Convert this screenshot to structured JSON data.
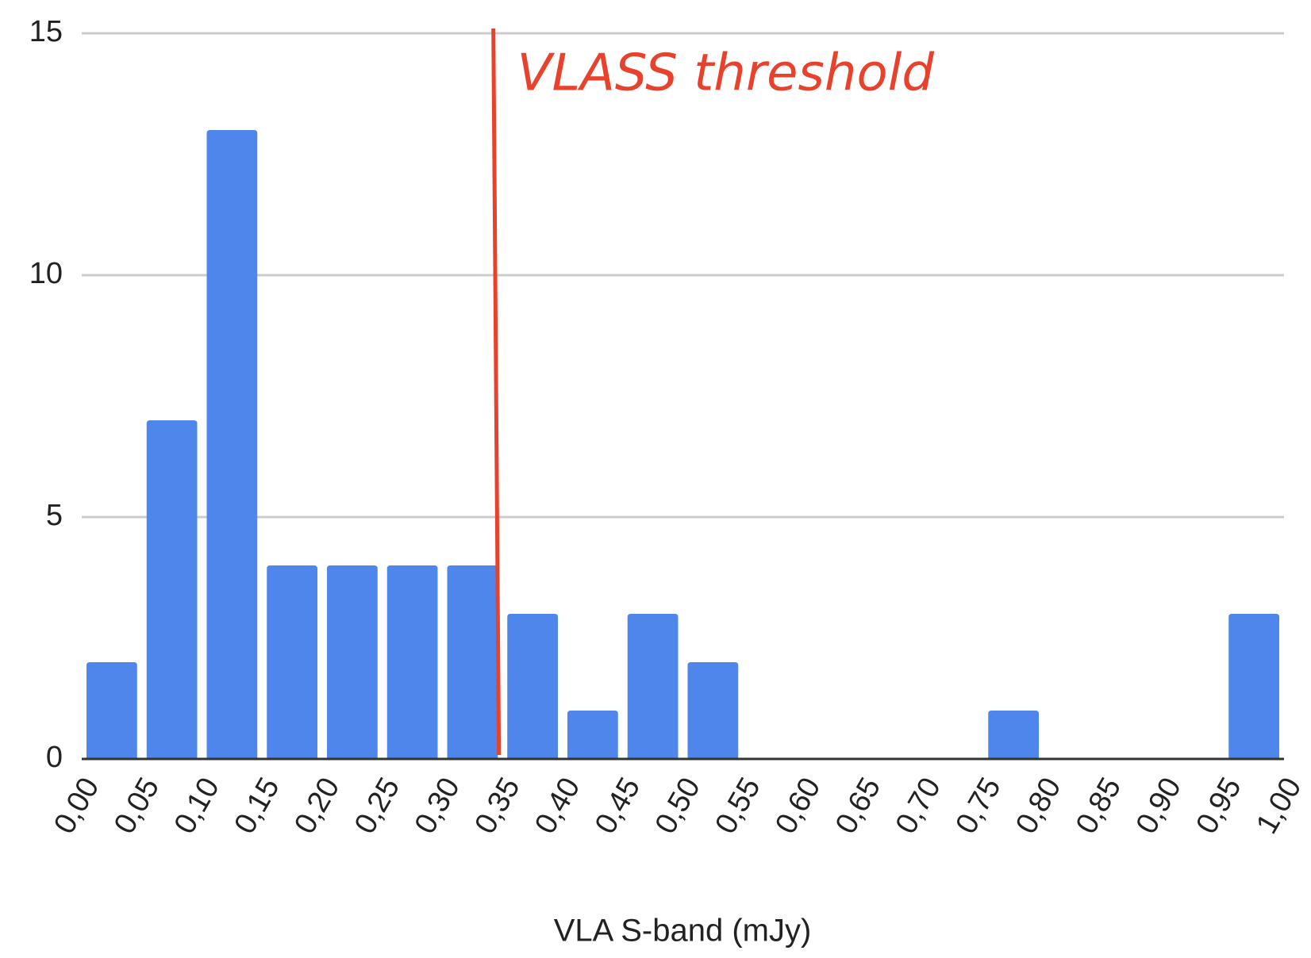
{
  "chart_data": {
    "type": "histogram",
    "x_label": "VLA S-band (mJy)",
    "bins": [
      0,
      0.05,
      0.1,
      0.15,
      0.2,
      0.25,
      0.3,
      0.35,
      0.4,
      0.45,
      0.5,
      0.55,
      0.6,
      0.65,
      0.7,
      0.75,
      0.8,
      0.85,
      0.9,
      0.95,
      1
    ],
    "values": [
      2,
      7,
      13,
      4,
      4,
      4,
      4,
      3,
      1,
      3,
      2,
      0,
      0,
      0,
      0,
      1,
      0,
      0,
      0,
      3
    ],
    "color": "#4f86ec",
    "xlim": [
      0,
      1
    ],
    "xticks": [
      {
        "value": 0,
        "label": "0,00"
      },
      {
        "value": 0.05,
        "label": "0,05"
      },
      {
        "value": 0.1,
        "label": "0,10"
      },
      {
        "value": 0.15,
        "label": "0,15"
      },
      {
        "value": 0.2,
        "label": "0,20"
      },
      {
        "value": 0.25,
        "label": "0,25"
      },
      {
        "value": 0.3,
        "label": "0,30"
      },
      {
        "value": 0.35,
        "label": "0,35"
      },
      {
        "value": 0.4,
        "label": "0,40"
      },
      {
        "value": 0.45,
        "label": "0,45"
      },
      {
        "value": 0.5,
        "label": "0,50"
      },
      {
        "value": 0.55,
        "label": "0,55"
      },
      {
        "value": 0.6,
        "label": "0,60"
      },
      {
        "value": 0.65,
        "label": "0,65"
      },
      {
        "value": 0.7,
        "label": "0,70"
      },
      {
        "value": 0.75,
        "label": "0,75"
      },
      {
        "value": 0.8,
        "label": "0,80"
      },
      {
        "value": 0.85,
        "label": "0,85"
      },
      {
        "value": 0.9,
        "label": "0,90"
      },
      {
        "value": 0.95,
        "label": "0,95"
      },
      {
        "value": 1,
        "label": "1,00"
      }
    ],
    "ylim": [
      0,
      15
    ],
    "yticks": [
      0,
      5,
      10,
      15
    ],
    "grid": true,
    "annotation": {
      "text": "VLASS threshold",
      "x": 0.345,
      "color": "#e8412c"
    }
  }
}
